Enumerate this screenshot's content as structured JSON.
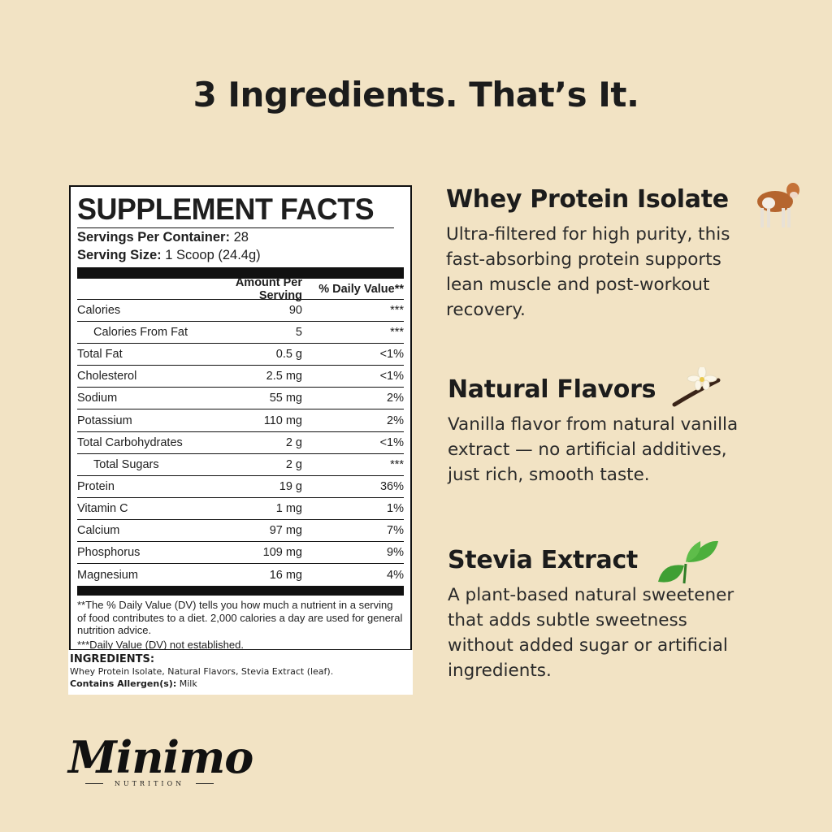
{
  "headline": "3 Ingredients. That’s It.",
  "facts": {
    "title": "SUPPLEMENT FACTS",
    "servings_label": "Servings Per Container:",
    "servings_value": "28",
    "size_label": "Serving Size:",
    "size_value": "1 Scoop (24.4g)",
    "col_amount": "Amount Per Serving",
    "col_dv": "% Daily Value**",
    "rows": [
      {
        "name": "Calories",
        "amount": "90",
        "dv": "***"
      },
      {
        "name": "Calories From Fat",
        "amount": "5",
        "dv": "***",
        "indent": true
      },
      {
        "name": "Total Fat",
        "amount": "0.5 g",
        "dv": "<1%"
      },
      {
        "name": "Cholesterol",
        "amount": "2.5 mg",
        "dv": "<1%"
      },
      {
        "name": "Sodium",
        "amount": "55 mg",
        "dv": "2%"
      },
      {
        "name": "Potassium",
        "amount": "110 mg",
        "dv": "2%"
      },
      {
        "name": "Total Carbohydrates",
        "amount": "2 g",
        "dv": "<1%"
      },
      {
        "name": "Total Sugars",
        "amount": "2 g",
        "dv": "***",
        "indent": true
      },
      {
        "name": "Protein",
        "amount": "19 g",
        "dv": "36%"
      },
      {
        "name": "Vitamin C",
        "amount": "1 mg",
        "dv": "1%"
      },
      {
        "name": "Calcium",
        "amount": "97 mg",
        "dv": "7%"
      },
      {
        "name": "Phosphorus",
        "amount": "109 mg",
        "dv": "9%"
      },
      {
        "name": "Magnesium",
        "amount": "16 mg",
        "dv": "4%"
      }
    ],
    "footnote1": "**The % Daily Value (DV) tells you how much a nutrient in a serving of food contributes to a diet. 2,000 calories a day are used for general nutrition advice.",
    "footnote2": "***Daily Value (DV) not established."
  },
  "ingredients": {
    "heading": "INGREDIENTS:",
    "list": "Whey Protein Isolate, Natural Flavors, Stevia Extract (leaf).",
    "allergen_label": "Contains Allergen(s):",
    "allergen_value": "Milk"
  },
  "items": [
    {
      "title": "Whey Protein Isolate",
      "text": "Ultra-filtered for high purity, this fast-absorbing protein supports lean muscle and post-workout recovery.",
      "icon": "cow-icon"
    },
    {
      "title": "Natural Flavors",
      "text": "Vanilla flavor from natural vanilla extract — no artificial additives, just rich, smooth taste.",
      "icon": "vanilla-flower-icon"
    },
    {
      "title": "Stevia Extract",
      "text": "A plant-based natural sweetener that adds subtle sweetness without added sugar or artificial ingredients.",
      "icon": "leaf-icon"
    }
  ],
  "logo": {
    "name": "Minimo",
    "sub": "NUTRITION"
  }
}
